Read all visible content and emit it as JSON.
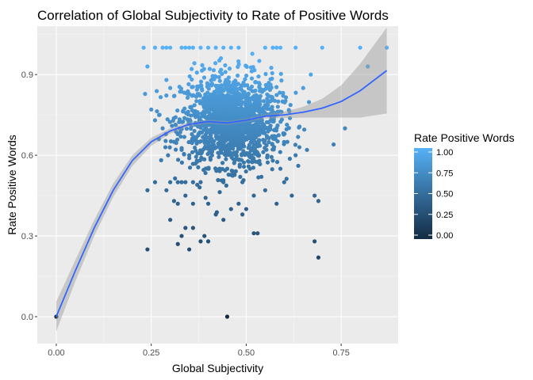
{
  "chart_data": {
    "type": "scatter",
    "title": "Correlation of Global Subjectivity to Rate of Positive Words",
    "xlabel": "Global Subjectivity",
    "ylabel": "Rate Positive Words",
    "xlim": [
      -0.05,
      0.9
    ],
    "ylim": [
      -0.1,
      1.08
    ],
    "x_ticks": [
      0.0,
      0.25,
      0.5,
      0.75
    ],
    "x_tick_labels": [
      "0.00",
      "0.25",
      "0.50",
      "0.75"
    ],
    "y_ticks": [
      0.0,
      0.3,
      0.6,
      0.9
    ],
    "y_tick_labels": [
      "0.0",
      "0.3",
      "0.6",
      "0.9"
    ],
    "grid": true,
    "legend": {
      "title": "Rate Positive Words",
      "placement": "right",
      "ticks": [
        1.0,
        0.75,
        0.5,
        0.25,
        0.0
      ],
      "labels": [
        "1.00",
        "0.75",
        "0.50",
        "0.25",
        "0.00"
      ],
      "color_low": "#132B43",
      "color_high": "#56B1F7"
    },
    "points": [
      {
        "x": 0.0,
        "y": 0.0
      },
      {
        "x": 0.45,
        "y": 0.0
      },
      {
        "x": 0.23,
        "y": 1.0
      },
      {
        "x": 0.24,
        "y": 0.93
      },
      {
        "x": 0.26,
        "y": 1.0
      },
      {
        "x": 0.28,
        "y": 1.0
      },
      {
        "x": 0.29,
        "y": 1.0
      },
      {
        "x": 0.3,
        "y": 1.0
      },
      {
        "x": 0.33,
        "y": 1.0
      },
      {
        "x": 0.34,
        "y": 1.0
      },
      {
        "x": 0.35,
        "y": 1.0
      },
      {
        "x": 0.36,
        "y": 1.0
      },
      {
        "x": 0.38,
        "y": 1.0
      },
      {
        "x": 0.4,
        "y": 1.0
      },
      {
        "x": 0.42,
        "y": 1.0
      },
      {
        "x": 0.44,
        "y": 1.0
      },
      {
        "x": 0.46,
        "y": 1.0
      },
      {
        "x": 0.48,
        "y": 1.0
      },
      {
        "x": 0.55,
        "y": 1.0
      },
      {
        "x": 0.57,
        "y": 1.0
      },
      {
        "x": 0.58,
        "y": 1.0
      },
      {
        "x": 0.59,
        "y": 1.0
      },
      {
        "x": 0.63,
        "y": 1.0
      },
      {
        "x": 0.7,
        "y": 1.0
      },
      {
        "x": 0.8,
        "y": 1.0
      },
      {
        "x": 0.87,
        "y": 1.0
      },
      {
        "x": 0.82,
        "y": 0.93
      },
      {
        "x": 0.67,
        "y": 0.9
      },
      {
        "x": 0.65,
        "y": 0.85
      },
      {
        "x": 0.29,
        "y": 0.88
      },
      {
        "x": 0.3,
        "y": 0.85
      },
      {
        "x": 0.31,
        "y": 0.82
      },
      {
        "x": 0.76,
        "y": 0.7
      },
      {
        "x": 0.73,
        "y": 0.64
      },
      {
        "x": 0.25,
        "y": 0.77
      },
      {
        "x": 0.27,
        "y": 0.66
      },
      {
        "x": 0.24,
        "y": 0.47
      },
      {
        "x": 0.26,
        "y": 0.5
      },
      {
        "x": 0.29,
        "y": 0.47
      },
      {
        "x": 0.3,
        "y": 0.5
      },
      {
        "x": 0.32,
        "y": 0.5
      },
      {
        "x": 0.33,
        "y": 0.5
      },
      {
        "x": 0.34,
        "y": 0.5
      },
      {
        "x": 0.36,
        "y": 0.5
      },
      {
        "x": 0.38,
        "y": 0.5
      },
      {
        "x": 0.34,
        "y": 0.45
      },
      {
        "x": 0.36,
        "y": 0.42
      },
      {
        "x": 0.32,
        "y": 0.42
      },
      {
        "x": 0.31,
        "y": 0.43
      },
      {
        "x": 0.4,
        "y": 0.42
      },
      {
        "x": 0.42,
        "y": 0.38
      },
      {
        "x": 0.44,
        "y": 0.36
      },
      {
        "x": 0.46,
        "y": 0.4
      },
      {
        "x": 0.48,
        "y": 0.42
      },
      {
        "x": 0.49,
        "y": 0.38
      },
      {
        "x": 0.5,
        "y": 0.4
      },
      {
        "x": 0.52,
        "y": 0.45
      },
      {
        "x": 0.55,
        "y": 0.47
      },
      {
        "x": 0.58,
        "y": 0.42
      },
      {
        "x": 0.62,
        "y": 0.45
      },
      {
        "x": 0.6,
        "y": 0.5
      },
      {
        "x": 0.68,
        "y": 0.45
      },
      {
        "x": 0.69,
        "y": 0.43
      },
      {
        "x": 0.3,
        "y": 0.36
      },
      {
        "x": 0.34,
        "y": 0.33
      },
      {
        "x": 0.36,
        "y": 0.33
      },
      {
        "x": 0.33,
        "y": 0.3
      },
      {
        "x": 0.32,
        "y": 0.27
      },
      {
        "x": 0.35,
        "y": 0.25
      },
      {
        "x": 0.38,
        "y": 0.28
      },
      {
        "x": 0.4,
        "y": 0.28
      },
      {
        "x": 0.39,
        "y": 0.3
      },
      {
        "x": 0.52,
        "y": 0.31
      },
      {
        "x": 0.53,
        "y": 0.31
      },
      {
        "x": 0.24,
        "y": 0.25
      },
      {
        "x": 0.68,
        "y": 0.28
      },
      {
        "x": 0.69,
        "y": 0.22
      },
      {
        "x": 0.45,
        "y": 0.55
      },
      {
        "x": 0.47,
        "y": 0.58
      },
      {
        "x": 0.51,
        "y": 0.55
      },
      {
        "x": 0.53,
        "y": 0.6
      },
      {
        "x": 0.57,
        "y": 0.58
      },
      {
        "x": 0.41,
        "y": 0.6
      },
      {
        "x": 0.37,
        "y": 0.58
      },
      {
        "x": 0.35,
        "y": 0.6
      },
      {
        "x": 0.33,
        "y": 0.62
      },
      {
        "x": 0.31,
        "y": 0.65
      },
      {
        "x": 0.28,
        "y": 0.7
      },
      {
        "x": 0.26,
        "y": 0.73
      },
      {
        "x": 0.63,
        "y": 0.6
      },
      {
        "x": 0.64,
        "y": 0.63
      },
      {
        "x": 0.66,
        "y": 0.62
      },
      {
        "x": 0.44,
        "y": 0.5
      },
      {
        "x": 0.43,
        "y": 0.55
      },
      {
        "x": 0.49,
        "y": 0.5
      },
      {
        "x": 0.54,
        "y": 0.52
      },
      {
        "x": 0.59,
        "y": 0.55
      }
    ],
    "cluster": {
      "x_mean": 0.46,
      "x_sd": 0.065,
      "y_mean": 0.73,
      "y_sd": 0.085,
      "count": 1500
    },
    "trend": {
      "x": [
        0.0,
        0.05,
        0.1,
        0.15,
        0.2,
        0.25,
        0.3,
        0.35,
        0.4,
        0.45,
        0.5,
        0.55,
        0.6,
        0.65,
        0.7,
        0.75,
        0.8,
        0.87
      ],
      "y": [
        0.0,
        0.17,
        0.33,
        0.47,
        0.58,
        0.65,
        0.69,
        0.715,
        0.725,
        0.72,
        0.73,
        0.745,
        0.75,
        0.76,
        0.775,
        0.8,
        0.84,
        0.915
      ],
      "band_half_width": [
        0.055,
        0.04,
        0.03,
        0.025,
        0.02,
        0.015,
        0.01,
        0.008,
        0.007,
        0.007,
        0.007,
        0.008,
        0.012,
        0.02,
        0.035,
        0.06,
        0.1,
        0.16
      ],
      "line_color": "#3366FF",
      "band_color": "#999999"
    }
  }
}
